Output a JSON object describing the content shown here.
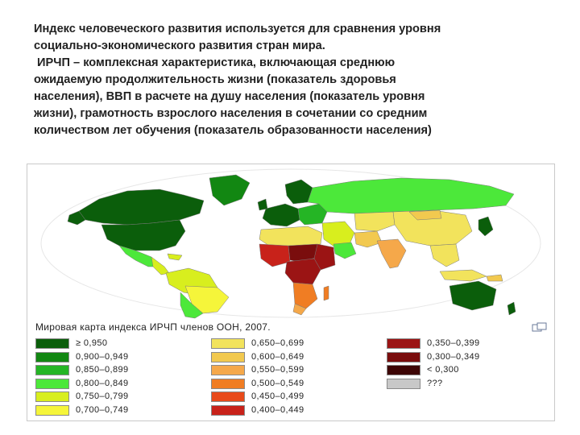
{
  "intro": {
    "line1": "Индекс человеческого развития используется для сравнения уровня",
    "line2": "социально-экономического развития стран мира.",
    "line3": " ИРЧП – комплексная характеристика, включающая среднюю",
    "line4": "ожидаемую продолжительность жизни (показатель здоровья",
    "line5": "населения), ВВП в расчете на душу населения (показатель уровня",
    "line6": "жизни), грамотность взрослого населения в сочетании со средним",
    "line7": "количеством лет обучения (показатель образованности населения)"
  },
  "map": {
    "caption": "Мировая карта индекса ИРЧП членов ООН, 2007.",
    "legend": [
      {
        "label": "≥ 0,950",
        "color": "#0b5e0b"
      },
      {
        "label": "0,900–0,949",
        "color": "#128712"
      },
      {
        "label": "0,850–0,899",
        "color": "#25b525"
      },
      {
        "label": "0,800–0,849",
        "color": "#4ce83a"
      },
      {
        "label": "0,750–0,799",
        "color": "#d8ee1e"
      },
      {
        "label": "0,700–0,749",
        "color": "#f5f53a"
      },
      {
        "label": "0,650–0,699",
        "color": "#f2e35c"
      },
      {
        "label": "0,600–0,649",
        "color": "#f2c94f"
      },
      {
        "label": "0,550–0,599",
        "color": "#f5a84a"
      },
      {
        "label": "0,500–0,549",
        "color": "#f07d23"
      },
      {
        "label": "0,450–0,499",
        "color": "#e84a1a"
      },
      {
        "label": "0,400–0,449",
        "color": "#c8221a"
      },
      {
        "label": "0,350–0,399",
        "color": "#9b1414"
      },
      {
        "label": "0,300–0,349",
        "color": "#7a0d0d"
      },
      {
        "label": "< 0,300",
        "color": "#3d0505"
      },
      {
        "label": "???",
        "color": "#c8c8c8"
      }
    ],
    "colors": {
      "ocean": "#ffffff",
      "ellipse_bg": "#ffffff",
      "land_outline": "#7a7a7a",
      "frame": "#c9c9c9"
    }
  }
}
